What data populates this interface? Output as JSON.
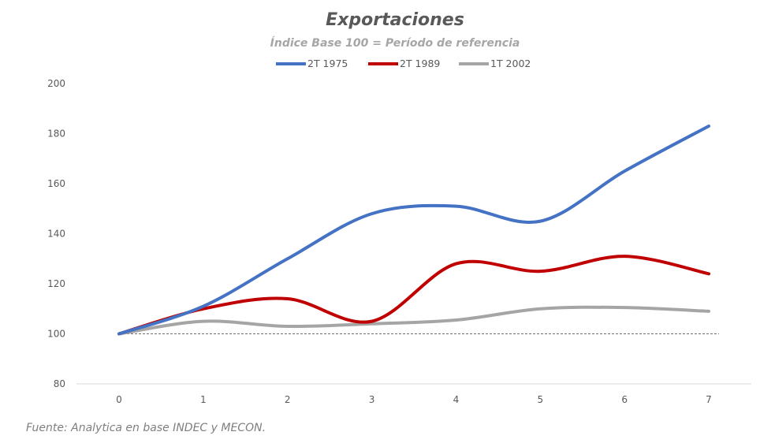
{
  "chart_data": {
    "type": "line",
    "title": "Exportaciones",
    "subtitle": "Índice Base 100 = Período de referencia",
    "x": [
      0,
      1,
      2,
      3,
      4,
      5,
      6,
      7
    ],
    "xticks": [
      "0",
      "1",
      "2",
      "3",
      "4",
      "5",
      "6",
      "7"
    ],
    "yticks": [
      "80",
      "100",
      "120",
      "140",
      "160",
      "180",
      "200"
    ],
    "ylim": [
      80,
      200
    ],
    "xlim": [
      0,
      7
    ],
    "grid": false,
    "legend": "top",
    "reference_line": 100,
    "series": [
      {
        "name": "2T 1975",
        "color": "#4472c4",
        "values": [
          100,
          111,
          130,
          148,
          151,
          145,
          165,
          183
        ]
      },
      {
        "name": "2T 1989",
        "color": "#c00000",
        "values": [
          100,
          110,
          114,
          105,
          128,
          125,
          131,
          124
        ]
      },
      {
        "name": "1T 2002",
        "color": "#a5a5a5",
        "values": [
          100,
          105,
          103,
          104,
          105.5,
          110,
          110.5,
          109
        ]
      }
    ]
  },
  "source": "Fuente: Analytica en base INDEC y MECON."
}
